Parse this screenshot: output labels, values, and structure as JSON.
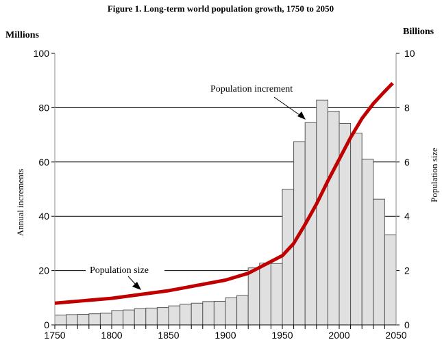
{
  "chart_data": {
    "type": "bar+line",
    "title": "Figure 1.  Long-term world population growth, 1750 to 2050",
    "left_unit": "Millions",
    "right_unit": "Billions",
    "ylabel": "Annual increments",
    "y2label": "Population size",
    "xlim": [
      1750,
      2050
    ],
    "ylim": [
      0,
      100
    ],
    "y2lim": [
      0,
      10
    ],
    "x_ticks": [
      "1750",
      "1800",
      "1850",
      "1900",
      "1950",
      "2000",
      "2050"
    ],
    "y_ticks": [
      "0",
      "20",
      "40",
      "60",
      "80",
      "100"
    ],
    "y2_ticks": [
      "0",
      "2",
      "4",
      "6",
      "8",
      "10"
    ],
    "grid": "horizontal",
    "bars": {
      "name": "Population increment",
      "x_start": [
        1750,
        1760,
        1770,
        1780,
        1790,
        1800,
        1810,
        1820,
        1830,
        1840,
        1850,
        1860,
        1870,
        1880,
        1890,
        1900,
        1910,
        1920,
        1930,
        1940,
        1950,
        1960,
        1970,
        1980,
        1990,
        2000,
        2010,
        2020,
        2030,
        2040
      ],
      "width": 10,
      "values": [
        3.6,
        3.8,
        3.9,
        4.1,
        4.3,
        5.3,
        5.5,
        6.0,
        6.2,
        6.4,
        7.0,
        7.6,
        8.0,
        8.6,
        8.7,
        10.0,
        10.8,
        21.0,
        22.8,
        22.6,
        50.0,
        67.5,
        74.5,
        82.8,
        78.7,
        74.2,
        70.6,
        61.0,
        46.3,
        33.2
      ]
    },
    "line": {
      "name": "Population size",
      "x": [
        1750,
        1800,
        1850,
        1900,
        1920,
        1950,
        1960,
        1970,
        1980,
        1990,
        2000,
        2010,
        2020,
        2030,
        2040,
        2047
      ],
      "values": [
        0.8,
        0.98,
        1.26,
        1.65,
        1.9,
        2.55,
        3.0,
        3.7,
        4.45,
        5.3,
        6.1,
        6.9,
        7.6,
        8.15,
        8.6,
        8.9
      ]
    },
    "annotations": [
      "Population increment",
      "Population size"
    ],
    "colors": {
      "bar": "#e0e0e0",
      "line": "#c00000"
    }
  }
}
